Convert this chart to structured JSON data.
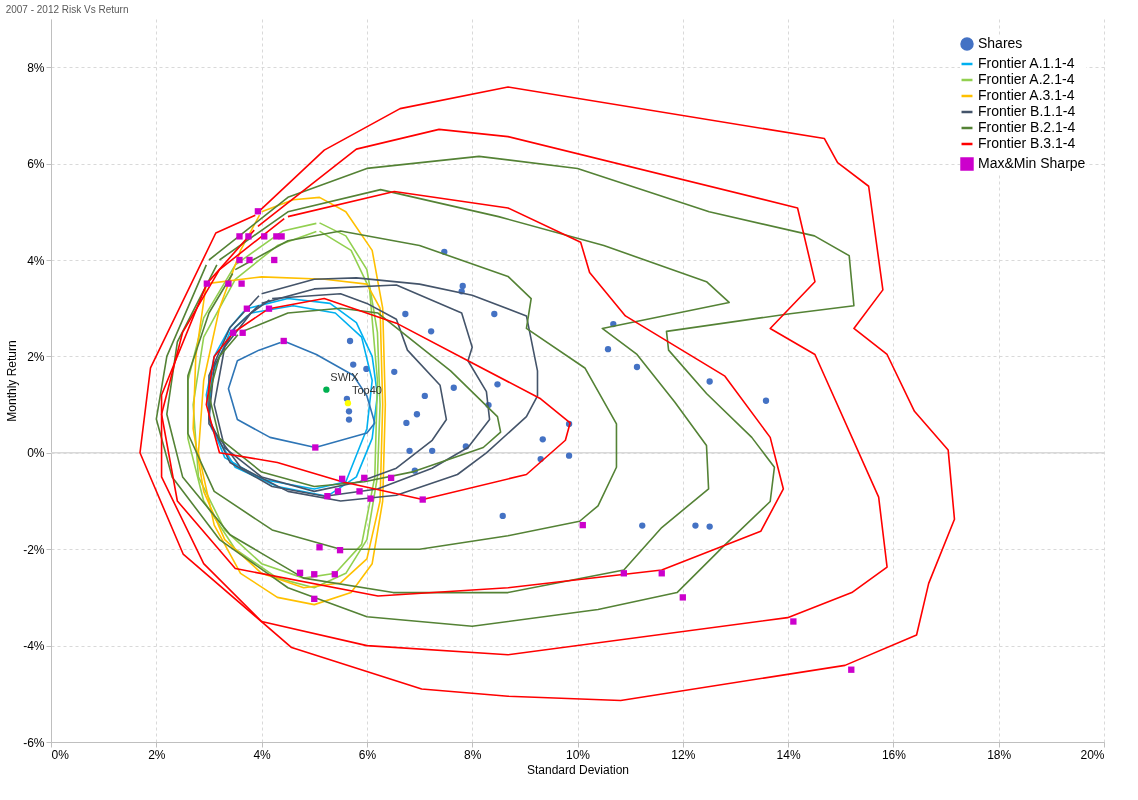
{
  "chart_data": {
    "type": "line",
    "title": "2007 - 2012 Risk Vs Return",
    "xlabel": "Standard Deviation",
    "ylabel": "Monthly Return",
    "xlim": [
      0,
      20
    ],
    "ylim": [
      -6,
      9
    ],
    "xticks": [
      {
        "value": 0,
        "label": "0%"
      },
      {
        "value": 2,
        "label": "2%"
      },
      {
        "value": 4,
        "label": "4%"
      },
      {
        "value": 6,
        "label": "6%"
      },
      {
        "value": 8,
        "label": "8%"
      },
      {
        "value": 10,
        "label": "10%"
      },
      {
        "value": 12,
        "label": "12%"
      },
      {
        "value": 14,
        "label": "14%"
      },
      {
        "value": 16,
        "label": "16%"
      },
      {
        "value": 18,
        "label": "18%"
      },
      {
        "value": 20,
        "label": "20%"
      }
    ],
    "yticks": [
      {
        "value": -6,
        "label": "-6%"
      },
      {
        "value": -4,
        "label": "-4%"
      },
      {
        "value": -2,
        "label": "-2%"
      },
      {
        "value": 0,
        "label": "0%"
      },
      {
        "value": 2,
        "label": "2%"
      },
      {
        "value": 4,
        "label": "4%"
      },
      {
        "value": 6,
        "label": "6%"
      },
      {
        "value": 8,
        "label": "8%"
      }
    ],
    "grid": true,
    "legend": "top right",
    "line_style": "solid",
    "ref_lines": [
      {
        "axis": "y",
        "value": 0,
        "color": "#d9d9d9"
      }
    ],
    "annotations": [
      {
        "text": "SWIX",
        "x": 5.23,
        "y": 1.31
      },
      {
        "text": "Top40",
        "x": 5.64,
        "y": 1.03
      }
    ],
    "series": [
      {
        "name": "Shares",
        "type": "scatter",
        "marker": "circle",
        "color": "#4472c4",
        "x": [
          7.47,
          7.82,
          7.8,
          8.42,
          6.73,
          7.22,
          5.68,
          5.74,
          5.99,
          6.52,
          7.65,
          8.48,
          7.1,
          6.95,
          6.75,
          8.31,
          5.62,
          5.66,
          5.66,
          6.81,
          7.24,
          7.88,
          6.91,
          9.34,
          9.3,
          9.84,
          9.84,
          8.58,
          10.68,
          10.58,
          11.13,
          12.51,
          13.58,
          11.23,
          12.24,
          12.51
        ],
        "values": [
          4.17,
          3.46,
          3.35,
          2.88,
          2.88,
          2.52,
          2.32,
          1.83,
          1.74,
          1.68,
          1.35,
          1.42,
          1.18,
          0.8,
          0.62,
          0.99,
          1.12,
          0.86,
          0.69,
          0.04,
          0.04,
          0.13,
          -0.37,
          0.28,
          -0.13,
          0.6,
          -0.06,
          -1.31,
          2.67,
          2.15,
          1.78,
          1.48,
          1.08,
          -1.51,
          -1.51,
          -1.53
        ]
      },
      {
        "name": "Frontier A.1.1-4",
        "color": "#00b0f0",
        "x": [
          3.72,
          4.5,
          5.3,
          5.8,
          6.1,
          6.2,
          6.1,
          5.8,
          5.25,
          4.3,
          3.5,
          3.05,
          2.95,
          3.1,
          3.4,
          3.66
        ],
        "values": [
          2.99,
          3.2,
          3.1,
          2.7,
          2.0,
          1.2,
          0.3,
          -0.5,
          -0.9,
          -0.7,
          -0.3,
          0.5,
          1.2,
          2.0,
          2.6,
          2.93
        ]
      },
      {
        "color": "#00b0f0",
        "x": [
          3.8,
          4.6,
          5.4,
          5.9,
          6.1,
          6.0,
          5.6,
          5.0,
          4.0,
          3.3,
          3.0,
          3.05,
          3.4,
          3.74
        ],
        "values": [
          2.9,
          3.05,
          2.9,
          2.4,
          1.5,
          0.5,
          -0.6,
          -0.75,
          -0.55,
          -0.1,
          0.7,
          1.6,
          2.5,
          2.85
        ]
      },
      {
        "color": "#2e75b6",
        "x": [
          4.42,
          5.04,
          5.74,
          6.0,
          6.15,
          6.0,
          5.02,
          4.16,
          3.54,
          3.37,
          3.54,
          3.95,
          4.36
        ],
        "values": [
          2.32,
          2.04,
          1.61,
          1.18,
          0.62,
          0.41,
          0.11,
          0.32,
          0.69,
          1.33,
          1.91,
          2.13,
          2.29
        ]
      },
      {
        "name": "Frontier A.2.1-4",
        "color": "#92d050",
        "x": [
          5.1,
          5.6,
          6.0,
          6.2,
          6.25,
          6.2,
          6.0,
          5.6,
          5.0,
          4.3,
          3.5,
          2.9,
          2.6,
          2.6,
          2.9,
          3.5,
          4.4,
          5.04
        ],
        "values": [
          4.77,
          4.5,
          3.8,
          2.5,
          1.0,
          -0.5,
          -1.8,
          -2.5,
          -2.8,
          -2.6,
          -2.0,
          -1.0,
          0.3,
          1.5,
          2.8,
          3.9,
          4.6,
          4.76
        ]
      },
      {
        "color": "#92d050",
        "x": [
          5.1,
          5.7,
          6.05,
          6.2,
          6.15,
          5.9,
          5.4,
          4.8,
          4.0,
          3.3,
          2.8,
          2.7,
          2.9,
          3.5,
          4.3,
          5.04
        ],
        "values": [
          4.6,
          4.2,
          3.4,
          1.5,
          -0.5,
          -1.9,
          -2.5,
          -2.6,
          -2.3,
          -1.6,
          -0.5,
          1.0,
          2.4,
          3.6,
          4.3,
          4.59
        ]
      },
      {
        "name": "Frontier A.3.1-4",
        "color": "#ffc000",
        "x": [
          4.0,
          4.6,
          5.1,
          5.6,
          6.1,
          6.3,
          6.35,
          6.3,
          6.1,
          5.7,
          5.0,
          4.3,
          3.6,
          3.1,
          2.8,
          2.9,
          3.2,
          3.6,
          3.96
        ],
        "values": [
          5.0,
          5.25,
          5.3,
          5.0,
          4.2,
          3.0,
          1.0,
          -1.0,
          -2.3,
          -2.9,
          -3.15,
          -3.0,
          -2.5,
          -1.5,
          0.0,
          1.5,
          3.0,
          4.2,
          4.93
        ]
      },
      {
        "color": "#ffc000",
        "x": [
          2.96,
          4.0,
          5.2,
          6.0,
          6.25,
          6.3,
          6.25,
          6.0,
          5.5,
          4.8,
          4.0,
          3.3,
          2.9,
          2.7,
          2.75,
          2.94
        ],
        "values": [
          3.51,
          3.65,
          3.6,
          3.5,
          3.0,
          1.0,
          -1.0,
          -2.2,
          -2.7,
          -2.8,
          -2.5,
          -1.8,
          -0.8,
          0.5,
          2.0,
          3.44
        ]
      },
      {
        "name": "Frontier B.1.1-4",
        "color": "#44546a",
        "x": [
          4.0,
          5.0,
          5.8,
          7.0,
          8.0,
          9.03,
          9.24,
          9.24,
          9.03,
          8.27,
          7.72,
          6.56,
          5.5,
          4.5,
          3.6,
          3.0,
          3.0,
          3.4,
          3.95
        ],
        "values": [
          3.3,
          3.6,
          3.63,
          3.5,
          3.27,
          2.84,
          1.7,
          1.18,
          0.75,
          0.0,
          -0.45,
          -0.88,
          -1.0,
          -0.8,
          -0.3,
          0.6,
          1.6,
          2.6,
          3.26
        ]
      },
      {
        "color": "#44546a",
        "x": [
          4.0,
          5.0,
          6.56,
          7.8,
          8.0,
          7.92,
          8.27,
          8.33,
          7.92,
          7.24,
          6.2,
          5.2,
          4.2,
          3.4,
          3.0,
          3.1,
          3.5,
          3.95
        ],
        "values": [
          3.1,
          3.4,
          3.48,
          2.9,
          2.19,
          1.91,
          1.27,
          0.69,
          0.11,
          -0.32,
          -0.75,
          -0.9,
          -0.7,
          -0.2,
          0.7,
          1.8,
          2.6,
          3.06
        ]
      },
      {
        "color": "#44546a",
        "x": [
          4.2,
          5.5,
          6.0,
          6.56,
          6.77,
          7.39,
          7.51,
          7.24,
          6.56,
          5.86,
          5.0,
          4.0,
          3.3,
          3.1,
          3.3,
          3.8,
          4.15
        ],
        "values": [
          3.2,
          3.3,
          3.1,
          2.77,
          2.13,
          1.4,
          0.69,
          0.26,
          -0.32,
          -0.6,
          -0.8,
          -0.5,
          0.1,
          1.0,
          2.2,
          2.9,
          3.17
        ]
      },
      {
        "name": "Frontier B.2.1-4",
        "color": "#548235",
        "x": [
          3.0,
          4.5,
          6.0,
          8.13,
          10.0,
          12.5,
          14.5,
          15.16,
          15.25,
          14.0,
          11.69,
          11.73,
          12.45,
          13.31,
          13.74,
          13.66,
          12.8,
          11.89,
          10.39,
          8.0,
          6.0,
          4.5,
          3.2,
          2.3,
          2.0,
          2.2,
          2.95
        ],
        "values": [
          4.0,
          5.3,
          5.9,
          6.15,
          5.9,
          5.0,
          4.5,
          4.09,
          3.05,
          2.88,
          2.52,
          2.13,
          1.23,
          0.32,
          -0.3,
          -1.01,
          -1.91,
          -2.9,
          -3.25,
          -3.6,
          -3.4,
          -2.8,
          -1.8,
          -0.5,
          0.7,
          2.0,
          3.9
        ]
      },
      {
        "color": "#548235",
        "x": [
          3.2,
          4.5,
          6.26,
          8.5,
          10.5,
          12.45,
          12.88,
          10.47,
          11.13,
          11.85,
          12.45,
          12.49,
          11.6,
          10.88,
          8.68,
          6.5,
          4.8,
          3.4,
          2.5,
          2.2,
          2.4,
          3.15
        ],
        "values": [
          4.0,
          5.0,
          5.46,
          4.9,
          4.3,
          3.55,
          3.12,
          2.58,
          2.04,
          1.05,
          0.15,
          -0.75,
          -1.55,
          -2.43,
          -2.9,
          -2.9,
          -2.6,
          -1.7,
          -0.5,
          0.8,
          2.3,
          3.9
        ]
      },
      {
        "color": "#548235",
        "x": [
          3.5,
          4.5,
          5.5,
          7.0,
          8.68,
          9.12,
          9.03,
          10.14,
          10.74,
          10.74,
          10.39,
          10.04,
          8.68,
          7.0,
          5.5,
          4.2,
          3.1,
          2.6,
          2.6,
          3.0,
          3.45
        ],
        "values": [
          3.8,
          4.4,
          4.6,
          4.3,
          3.66,
          3.2,
          2.58,
          1.76,
          0.6,
          -0.3,
          -1.1,
          -1.42,
          -1.72,
          -2.0,
          -2.0,
          -1.6,
          -0.8,
          0.4,
          1.6,
          2.9,
          3.72
        ]
      },
      {
        "color": "#548235",
        "x": [
          3.6,
          4.5,
          5.5,
          6.21,
          7.59,
          8.48,
          8.54,
          8.21,
          6.89,
          5.95,
          5.0,
          4.0,
          3.2,
          3.0,
          3.2,
          3.55
        ],
        "values": [
          2.5,
          2.9,
          3.0,
          2.9,
          1.7,
          0.75,
          0.43,
          0.11,
          -0.39,
          -0.6,
          -0.7,
          -0.4,
          0.3,
          1.2,
          2.0,
          2.45
        ]
      },
      {
        "name": "Frontier B.3.1-4",
        "color": "#ff0000",
        "x": [
          3.95,
          5.19,
          6.63,
          8.68,
          14.69,
          14.94,
          15.53,
          15.8,
          15.25,
          15.88,
          16.4,
          17.04,
          17.16,
          16.67,
          16.44,
          15.08,
          10.82,
          8.68,
          7.04,
          4.57,
          2.51,
          1.69,
          1.89,
          3.13,
          3.88
        ],
        "values": [
          5.01,
          6.28,
          7.14,
          7.59,
          6.52,
          6.02,
          5.53,
          3.38,
          2.58,
          2.04,
          0.86,
          0.06,
          -1.38,
          -2.71,
          -3.78,
          -4.41,
          -5.14,
          -5.05,
          -4.9,
          -4.04,
          -2.1,
          0.0,
          1.76,
          4.56,
          4.93
        ]
      },
      {
        "color": "#ff0000",
        "x": [
          3.93,
          5.8,
          7.37,
          8.68,
          14.18,
          14.51,
          13.66,
          14.51,
          15.72,
          15.88,
          15.21,
          13.99,
          8.68,
          6.0,
          4.0,
          2.9,
          2.1,
          2.1,
          2.96,
          3.86
        ],
        "values": [
          4.7,
          6.3,
          6.71,
          6.56,
          5.08,
          3.55,
          2.58,
          2.04,
          -0.92,
          -2.37,
          -2.9,
          -3.42,
          -4.19,
          -4.0,
          -3.5,
          -2.3,
          -0.5,
          1.2,
          3.51,
          4.62
        ]
      },
      {
        "color": "#ff0000",
        "x": [
          4.5,
          6.52,
          8.68,
          10.06,
          10.23,
          10.91,
          12.8,
          13.66,
          13.91,
          13.48,
          11.6,
          8.68,
          6.21,
          3.5,
          2.4,
          2.1,
          2.5,
          3.2,
          4.43
        ],
        "values": [
          4.9,
          5.42,
          5.08,
          4.37,
          3.74,
          2.84,
          1.59,
          0.32,
          -0.75,
          -1.63,
          -2.43,
          -2.8,
          -2.97,
          -2.4,
          -1.0,
          0.8,
          2.5,
          3.8,
          4.86
        ]
      },
      {
        "color": "#ff0000",
        "x": [
          4.14,
          5.19,
          6.56,
          7.92,
          9.3,
          9.86,
          9.77,
          9.03,
          7.06,
          5.53,
          4.3,
          3.2,
          2.95,
          3.1,
          3.46,
          4.08
        ],
        "values": [
          2.99,
          3.2,
          2.69,
          1.91,
          1.12,
          0.62,
          0.26,
          -0.45,
          -0.97,
          -0.6,
          -0.2,
          0.0,
          1.0,
          2.0,
          2.49,
          2.95
        ]
      },
      {
        "type": "scatter",
        "marker": "circle",
        "color": "#00b050",
        "x": [
          5.23
        ],
        "values": [
          1.31
        ]
      },
      {
        "type": "scatter",
        "marker": "circle",
        "color": "#ffff00",
        "x": [
          5.64
        ],
        "values": [
          1.03
        ]
      },
      {
        "name": "Max&Min Sharpe",
        "type": "scatter",
        "marker": "square",
        "color": "#cc00cc",
        "x": [
          3.93,
          3.58,
          3.75,
          4.05,
          4.28,
          4.38,
          3.58,
          3.77,
          4.24,
          2.96,
          3.37,
          3.62,
          3.72,
          4.14,
          3.46,
          3.64,
          4.42,
          5.02,
          5.53,
          5.95,
          6.46,
          5.45,
          5.86,
          5.25,
          6.07,
          7.06,
          5.1,
          5.49,
          4.73,
          5.0,
          5.39,
          5.0,
          10.1,
          10.88,
          11.6,
          12.0,
          14.1,
          15.2
        ],
        "values": [
          5.01,
          4.49,
          4.49,
          4.49,
          4.49,
          4.49,
          4.0,
          4.0,
          4.0,
          3.51,
          3.51,
          3.51,
          2.99,
          2.99,
          2.49,
          2.49,
          2.32,
          0.11,
          -0.54,
          -0.52,
          -0.52,
          -0.8,
          -0.8,
          -0.9,
          -0.95,
          -0.97,
          -1.96,
          -2.02,
          -2.49,
          -2.52,
          -2.52,
          -3.03,
          -1.5,
          -2.5,
          -2.5,
          -3.0,
          -3.5,
          -4.5
        ]
      }
    ]
  }
}
